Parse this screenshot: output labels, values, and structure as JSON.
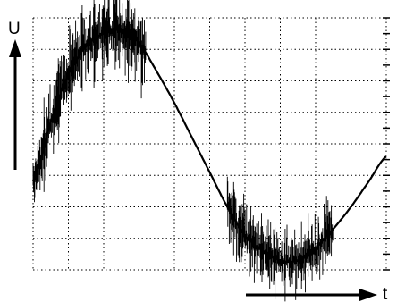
{
  "chart_data": {
    "type": "line",
    "title": "",
    "ylabel": "U",
    "xlabel": "t",
    "grid": true,
    "grid_divisions": {
      "x": 10,
      "y": 8
    },
    "xlim": [
      0,
      10
    ],
    "ylim": [
      -4,
      4
    ],
    "series": [
      {
        "x": [
          0,
          0.5,
          1,
          1.5,
          2,
          2.5,
          3,
          3.5,
          4,
          4.5,
          5,
          5.5,
          6,
          6.5,
          7,
          7.5,
          8,
          8.5,
          9,
          9.5,
          10
        ],
        "y": [
          -1.2,
          0.7,
          2.2,
          3.1,
          3.5,
          3.6,
          3.2,
          2.3,
          1.3,
          0.2,
          -0.9,
          -2.0,
          -2.9,
          -3.4,
          -3.7,
          -3.7,
          -3.3,
          -2.7,
          -2.0,
          -1.2,
          -0.4
        ],
        "noise_region": [
          0,
          3.2
        ],
        "noise_region_2": [
          5.5,
          8.5
        ],
        "color": "#000000"
      }
    ]
  }
}
